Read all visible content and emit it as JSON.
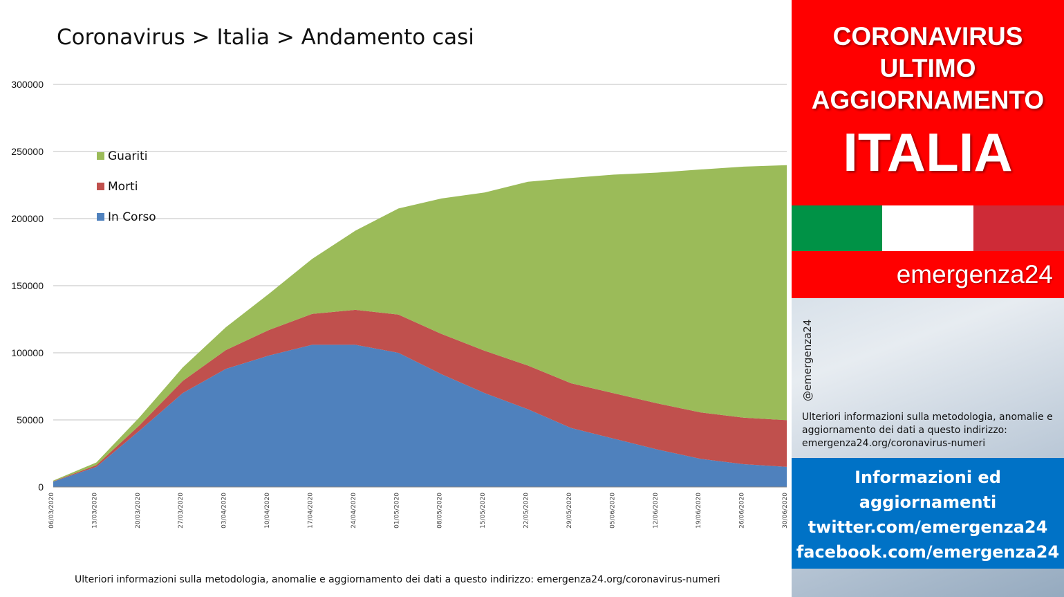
{
  "title": "Coronavirus > Italia > Andamento casi",
  "footer": "Ulteriori informazioni sulla metodologia, anomalie e aggiornamento dei dati a questo indirizzo: emergenza24.org/coronavirus-numeri",
  "colors": {
    "guariti": "#9bbb59",
    "morti": "#c0504d",
    "in_corso": "#4f81bd",
    "banner": "#ff0000",
    "info_box": "#0072c6"
  },
  "chart_data": {
    "type": "area",
    "stacked": true,
    "ylim": [
      0,
      300000
    ],
    "yticks": [
      "0",
      "50000",
      "100000",
      "150000",
      "200000",
      "250000",
      "300000"
    ],
    "grid": true,
    "legend_position": "top-left",
    "x_range": [
      "06/03/2020",
      "30/06/2020"
    ],
    "x": [
      "06/03/2020",
      "13/03/2020",
      "20/03/2020",
      "27/03/2020",
      "03/04/2020",
      "10/04/2020",
      "17/04/2020",
      "24/04/2020",
      "01/05/2020",
      "08/05/2020",
      "15/05/2020",
      "22/05/2020",
      "29/05/2020",
      "05/06/2020",
      "12/06/2020",
      "19/06/2020",
      "26/06/2020",
      "30/06/2020"
    ],
    "series": [
      {
        "name": "In Corso",
        "values": [
          4000,
          15000,
          42000,
          70000,
          88000,
          98000,
          106000,
          106000,
          100000,
          84000,
          70000,
          58000,
          44000,
          36000,
          28000,
          21000,
          17000,
          15000
        ]
      },
      {
        "name": "Morti",
        "values": [
          200,
          1300,
          4000,
          9000,
          14000,
          19000,
          23000,
          26000,
          28500,
          30000,
          31500,
          32500,
          33300,
          33800,
          34300,
          34600,
          34700,
          34800
        ]
      },
      {
        "name": "Guariti",
        "values": [
          600,
          2000,
          6000,
          10000,
          17000,
          27000,
          41000,
          59000,
          79000,
          101000,
          118000,
          137000,
          153000,
          163000,
          172000,
          181000,
          187000,
          190000
        ]
      }
    ]
  },
  "sidebar": {
    "banner": {
      "line1": "CORONAVIRUS",
      "line2": "ULTIMO",
      "line3": "AGGIORNAMENTO",
      "country": "ITALIA"
    },
    "flag": {
      "green": "#009246",
      "white": "#ffffff",
      "red": "#ce2b37"
    },
    "brand": "emergenza24",
    "handle": "@emergenza24",
    "note": "Ulteriori informazioni sulla metodologia, anomalie e aggiornamento dei dati a questo indirizzo: emergenza24.org/coronavirus-numeri",
    "info": {
      "line1": "Informazioni ed",
      "line2": "aggiornamenti",
      "line3": "twitter.com/emergenza24",
      "line4": "facebook.com/emergenza24"
    }
  }
}
